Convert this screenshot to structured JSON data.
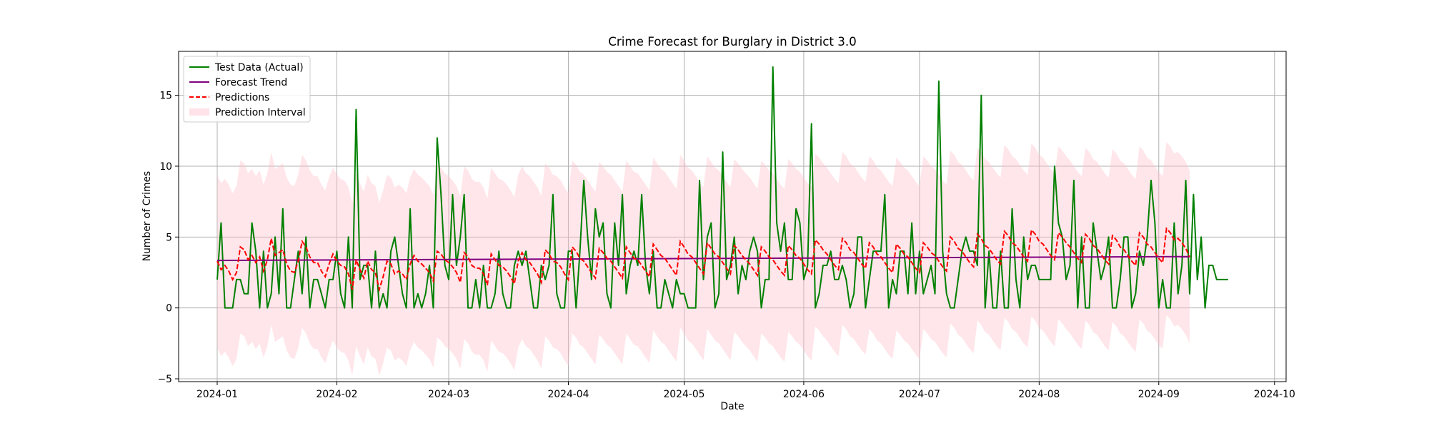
{
  "chart_data": {
    "type": "line",
    "title": "Crime Forecast for Burglary in District 3.0",
    "xlabel": "Date",
    "ylabel": "Number of Crimes",
    "x_start": "2024-01-01",
    "x_end": "2024-09-21",
    "xlim": [
      "2023-12-22",
      "2024-10-04"
    ],
    "ylim": [
      -5.2,
      18.1
    ],
    "x_ticks": [
      "2024-01",
      "2024-02",
      "2024-03",
      "2024-04",
      "2024-05",
      "2024-06",
      "2024-07",
      "2024-08",
      "2024-09",
      "2024-10"
    ],
    "y_ticks": [
      -5,
      0,
      5,
      10,
      15
    ],
    "grid": true,
    "legend_position": "top-left",
    "legend": [
      "Test Data (Actual)",
      "Forecast Trend",
      "Predictions",
      "Prediction Interval"
    ],
    "colors": {
      "actual": "#008000",
      "trend": "#800080",
      "predictions": "#ff0000",
      "interval": "#ffc0cb",
      "grid": "#b0b0b0"
    },
    "series": [
      {
        "name": "Test Data (Actual)",
        "style": "solid",
        "values": [
          2,
          6,
          0,
          0,
          0,
          2,
          2,
          1,
          1,
          6,
          4,
          0,
          4,
          0,
          1,
          5,
          1,
          7,
          0,
          0,
          2,
          4,
          1,
          5,
          0,
          2,
          2,
          1,
          0,
          2,
          2,
          4,
          1,
          0,
          5,
          0,
          14,
          2,
          3,
          3,
          0,
          4,
          0,
          1,
          0,
          4,
          5,
          3,
          1,
          0,
          7,
          0,
          1,
          0,
          1,
          3,
          0,
          12,
          8,
          3,
          2,
          8,
          3,
          5,
          8,
          0,
          0,
          2,
          0,
          3,
          0,
          0,
          1,
          4,
          1,
          0,
          0,
          3,
          4,
          3,
          4,
          2,
          0,
          0,
          3,
          2,
          3,
          8,
          1,
          0,
          0,
          4,
          4,
          0,
          4,
          9,
          5,
          2,
          7,
          5,
          6,
          1,
          0,
          6,
          3,
          8,
          1,
          3,
          4,
          3,
          8,
          3,
          1,
          4,
          0,
          0,
          2,
          1,
          0,
          2,
          1,
          1,
          0,
          0,
          0,
          9,
          2,
          5,
          6,
          0,
          1,
          11,
          2,
          3,
          5,
          1,
          3,
          2,
          4,
          5,
          4,
          0,
          2,
          2,
          17,
          6,
          4,
          6,
          2,
          2,
          7,
          6,
          2,
          3,
          13,
          0,
          1,
          3,
          3,
          4,
          2,
          2,
          3,
          2,
          0,
          1,
          5,
          5,
          0,
          2,
          4,
          4,
          4,
          8,
          0,
          2,
          1,
          4,
          4,
          1,
          6,
          1,
          4,
          1,
          2,
          3,
          1,
          16,
          4,
          1,
          0,
          0,
          2,
          4,
          5,
          4,
          4,
          3,
          15,
          0,
          4,
          0,
          0,
          4,
          0,
          0,
          7,
          2,
          0,
          5,
          2,
          3,
          3,
          2,
          2,
          2,
          2,
          10,
          6,
          5,
          2,
          3,
          9,
          0,
          5,
          0,
          0,
          6,
          4,
          2,
          3,
          5,
          0,
          0,
          2,
          5,
          5,
          0,
          1,
          4,
          3,
          5,
          9,
          6,
          0,
          2,
          0,
          0,
          6,
          1,
          3,
          9,
          1,
          8,
          2,
          5,
          0,
          3,
          3,
          2,
          2,
          2,
          2
        ]
      },
      {
        "name": "Forecast Trend",
        "style": "solid",
        "start": 3.35,
        "end": 3.62
      },
      {
        "name": "Predictions",
        "style": "dashed",
        "values": [
          3.3,
          2.7,
          3.0,
          2.6,
          2.0,
          2.5,
          4.3,
          4.1,
          3.4,
          3.7,
          3.2,
          3.6,
          2.6,
          3.4,
          4.9,
          3.7,
          3.9,
          4.1,
          3.1,
          2.6,
          2.5,
          3.3,
          4.7,
          4.3,
          3.6,
          3.2,
          3.2,
          2.6,
          2.2,
          3.1,
          3.8,
          3.3,
          3.0,
          2.9,
          2.4,
          1.3,
          3.4,
          2.7,
          2.1,
          3.3,
          2.7,
          2.5,
          1.3,
          2.2,
          3.3,
          3.1,
          2.4,
          2.6,
          2.4,
          2.0,
          3.1,
          3.7,
          3.3,
          3.1,
          2.8,
          2.5,
          1.9,
          4.0,
          3.8,
          3.4,
          3.2,
          2.9,
          2.5,
          1.8,
          3.9,
          3.6,
          3.0,
          2.8,
          2.8,
          2.4,
          1.6,
          3.8,
          3.4,
          3.0,
          2.9,
          2.6,
          2.2,
          1.7,
          3.3,
          3.9,
          3.4,
          3.2,
          2.8,
          2.4,
          1.8,
          4.1,
          3.8,
          3.3,
          3.2,
          2.9,
          2.4,
          2.0,
          4.3,
          4.0,
          3.5,
          3.3,
          2.9,
          2.5,
          2.1,
          4.2,
          3.9,
          3.5,
          3.3,
          2.9,
          2.5,
          2.1,
          4.3,
          3.9,
          3.5,
          3.4,
          3.0,
          2.6,
          2.2,
          4.5,
          4.1,
          3.7,
          3.5,
          3.1,
          2.7,
          2.3,
          4.7,
          4.3,
          3.8,
          3.6,
          3.2,
          2.8,
          2.4,
          4.6,
          4.2,
          3.8,
          3.6,
          3.2,
          2.8,
          2.4,
          4.4,
          4.1,
          3.7,
          3.4,
          3.1,
          2.7,
          2.3,
          4.3,
          4.0,
          3.6,
          3.4,
          3.0,
          2.6,
          2.3,
          4.4,
          4.1,
          3.7,
          3.5,
          3.1,
          2.7,
          2.4,
          4.8,
          4.5,
          4.1,
          3.8,
          3.4,
          3.0,
          2.7,
          4.9,
          4.6,
          4.1,
          3.9,
          3.5,
          3.1,
          2.8,
          4.6,
          4.3,
          3.8,
          3.6,
          3.2,
          2.8,
          2.5,
          4.5,
          4.2,
          3.8,
          3.6,
          3.2,
          2.8,
          2.5,
          4.6,
          4.3,
          3.9,
          3.7,
          3.3,
          2.9,
          2.6,
          5.0,
          4.7,
          4.2,
          4.0,
          3.6,
          3.2,
          2.9,
          5.2,
          4.9,
          4.4,
          4.2,
          3.8,
          3.4,
          3.1,
          5.4,
          5.1,
          4.6,
          4.4,
          4.0,
          3.6,
          3.3,
          5.5,
          5.2,
          4.7,
          4.5,
          4.1,
          3.7,
          3.4,
          5.3,
          5.0,
          4.6,
          4.3,
          3.9,
          3.5,
          3.2,
          5.2,
          4.9,
          4.4,
          4.2,
          3.8,
          3.4,
          3.1,
          5.1,
          4.8,
          4.3,
          4.1,
          3.7,
          3.3,
          3.0,
          5.3,
          5.0,
          4.5,
          4.3,
          3.9,
          3.5,
          3.2,
          5.6,
          5.3,
          4.8,
          4.9,
          4.6,
          4.2,
          3.6
        ]
      },
      {
        "name": "Prediction Interval",
        "style": "band",
        "half_width": 6.1
      }
    ]
  }
}
